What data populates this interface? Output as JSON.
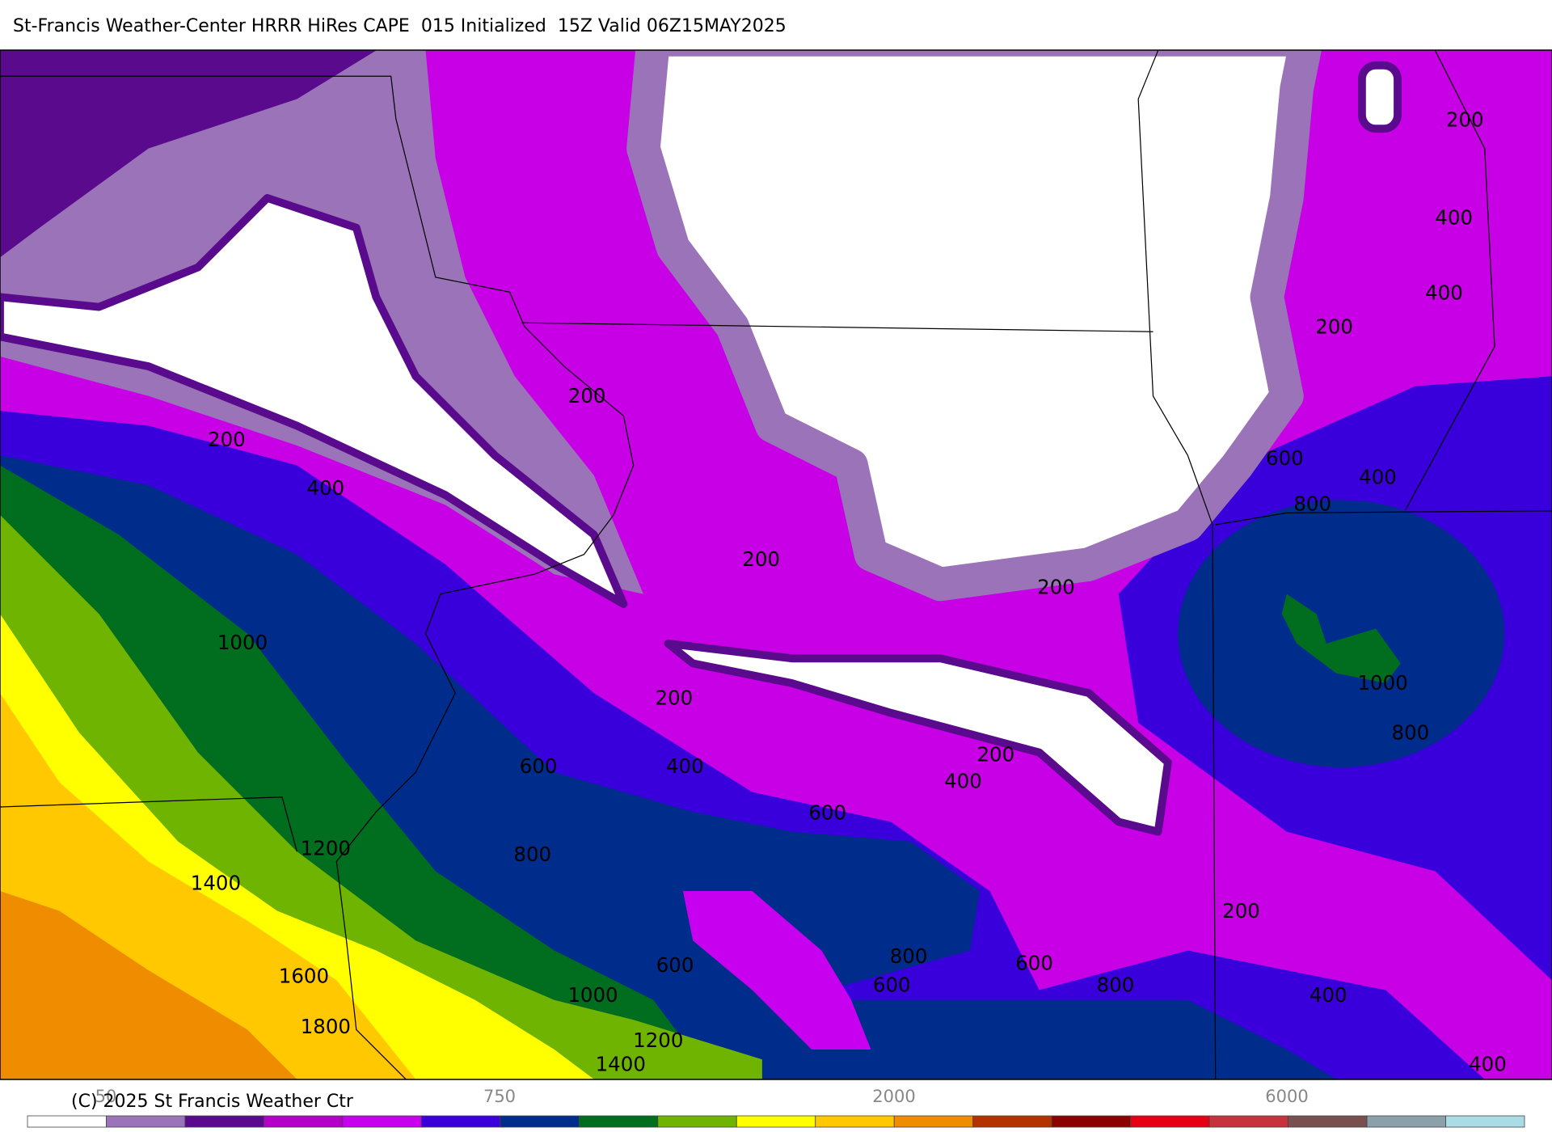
{
  "header": {
    "title": "St-Francis Weather-Center HRRR HiRes CAPE  015 Initialized  15Z Valid 06Z15MAY2025"
  },
  "contour_labels": [
    200,
    200,
    400,
    1000,
    200,
    200,
    200,
    600,
    400,
    200,
    400,
    600,
    800,
    1200,
    1400,
    1600,
    1800,
    600,
    1000,
    1200,
    1400,
    800,
    600,
    600,
    800,
    200,
    400,
    400,
    200,
    600,
    400,
    800,
    1000,
    800,
    200,
    400,
    400
  ],
  "colorbar": {
    "labels": [
      "50",
      "750",
      "2000",
      "6000"
    ]
  },
  "copyright": "(C) 2025 St Francis Weather Ctr"
}
